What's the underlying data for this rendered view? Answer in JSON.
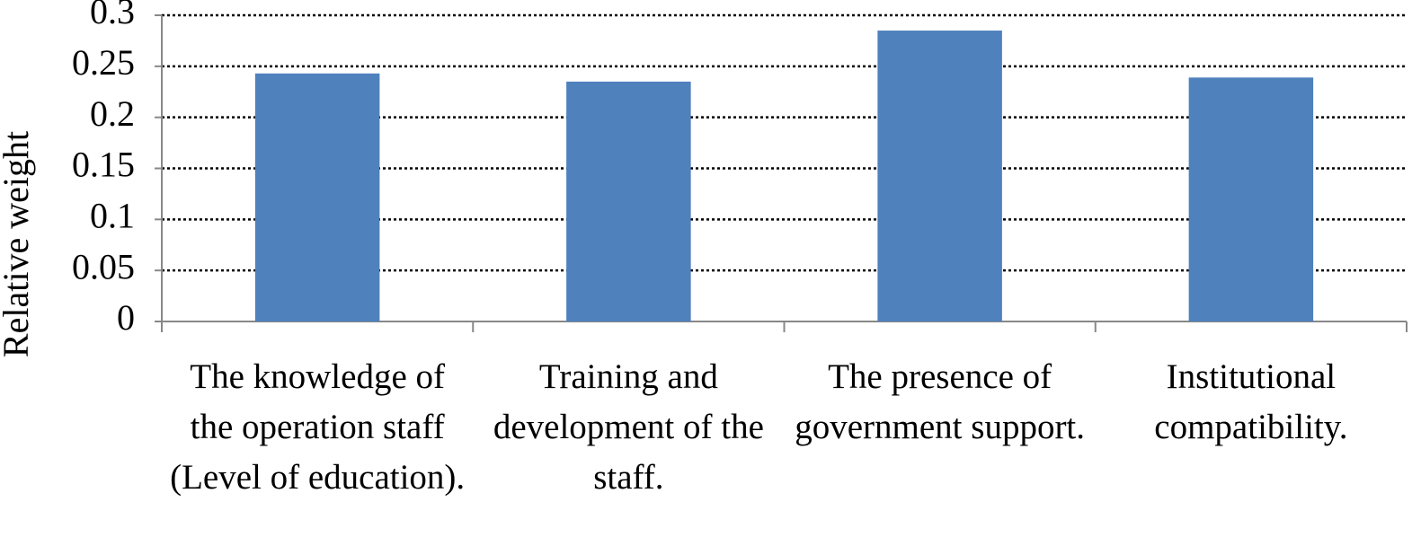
{
  "chart_data": {
    "type": "bar",
    "y_label": "Relative weight",
    "categories": [
      "The knowledge of the operation staff (Level of education).",
      "Training and development of the staff.",
      "The presence of government support.",
      "Institutional compatibility."
    ],
    "values": [
      0.243,
      0.235,
      0.285,
      0.239
    ],
    "color": "#4f81bd",
    "ylim": [
      0,
      0.3
    ],
    "yticks": [
      0,
      0.05,
      0.1,
      0.15,
      0.2,
      0.25,
      0.3
    ],
    "grid": true
  }
}
